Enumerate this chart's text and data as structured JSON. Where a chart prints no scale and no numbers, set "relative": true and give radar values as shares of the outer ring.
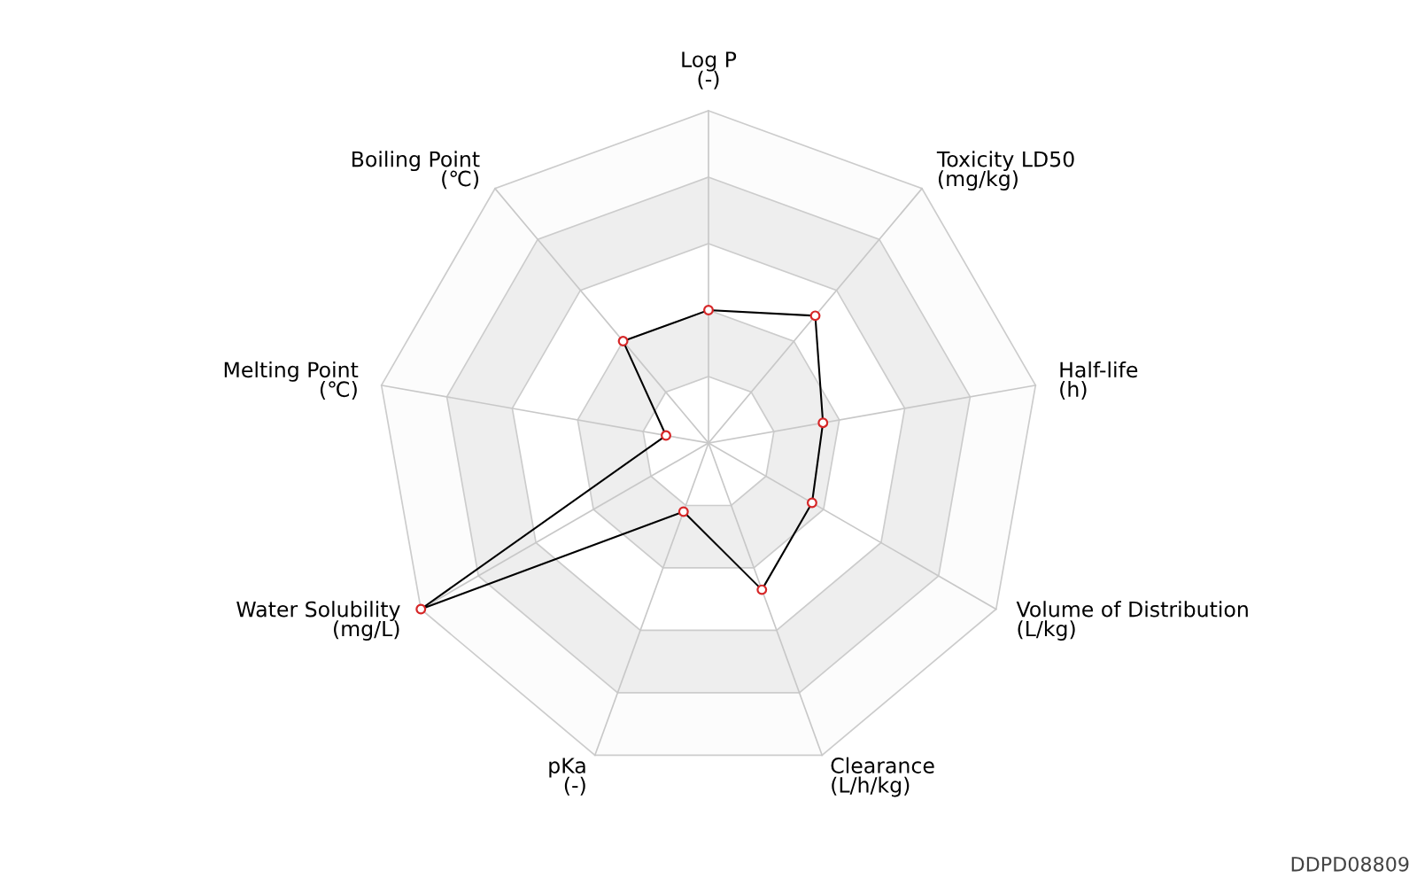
{
  "chart_data": {
    "type": "radar",
    "relative": true,
    "categories": [
      "Log P\n(-)",
      "Toxicity LD50\n(mg/kg)",
      "Half-life\n(h)",
      "Volume of Distribution\n(L/kg)",
      "Clearance\n(L/h/kg)",
      "pKa\n(-)",
      "Water Solubility\n(mg/L)",
      "Melting Point\n(℃)",
      "Boiling Point\n(℃)"
    ],
    "series": [
      {
        "color": "#000000",
        "values": [
          0.4,
          0.5,
          0.35,
          0.36,
          0.47,
          0.22,
          1.0,
          0.13,
          0.4
        ]
      }
    ],
    "marker": "circle",
    "line_style": "solid",
    "annotations": [
      "DDPD08809"
    ]
  }
}
